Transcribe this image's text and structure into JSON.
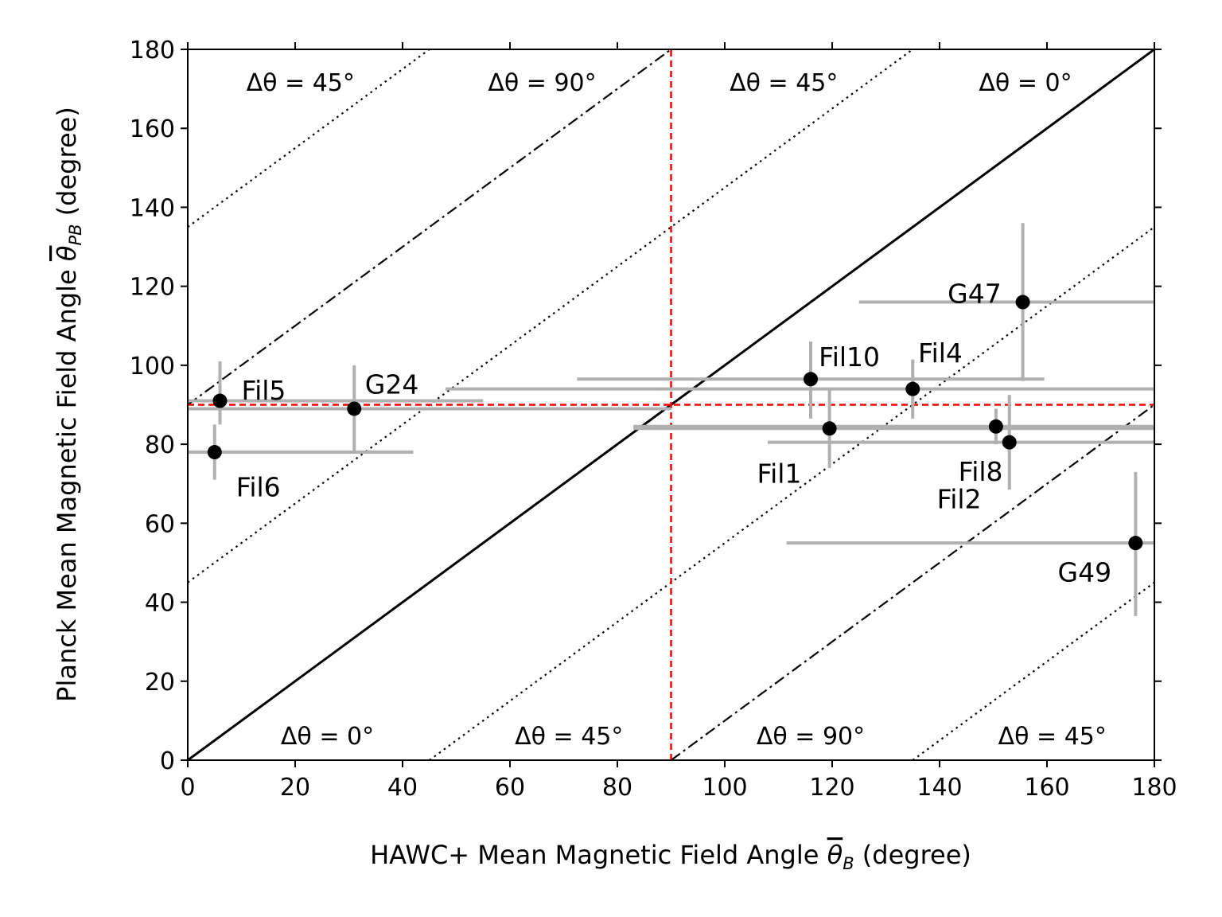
{
  "chart_data": {
    "type": "scatter",
    "xlabel": "HAWC+ Mean Magnetic Field Angle θ̄B (degree)",
    "ylabel": "Planck Mean Magnetic Field Angle θ̄PB (degree)",
    "xlabel_parts": {
      "main": "HAWC+ Mean Magnetic Field Angle ",
      "symbol": "θ",
      "sub": "B",
      "unit": " (degree)"
    },
    "ylabel_parts": {
      "main": "Planck Mean Magnetic Field Angle ",
      "symbol": "θ",
      "sub": "PB",
      "unit": " (degree)"
    },
    "xlim": [
      0,
      180
    ],
    "ylim": [
      0,
      180
    ],
    "xticks": [
      0,
      20,
      40,
      60,
      80,
      100,
      120,
      140,
      160,
      180
    ],
    "yticks": [
      0,
      20,
      40,
      60,
      80,
      100,
      120,
      140,
      160,
      180
    ],
    "grid": false,
    "colors": {
      "points": "#000000",
      "errorbars": "#b0b0b0",
      "reference": "#ff0000"
    },
    "points": [
      {
        "name": "Fil5",
        "x": 6,
        "y": 91,
        "xerr": [
          6,
          49
        ],
        "yerr": [
          6,
          10
        ]
      },
      {
        "name": "Fil6",
        "x": 5,
        "y": 78,
        "xerr": [
          5,
          37
        ],
        "yerr": [
          7,
          7
        ]
      },
      {
        "name": "G24",
        "x": 31,
        "y": 89,
        "xerr": [
          31,
          59
        ],
        "yerr": [
          11,
          11
        ]
      },
      {
        "name": "Fil10",
        "x": 116,
        "y": 96.5,
        "xerr": [
          43.5,
          43.5
        ],
        "yerr": [
          10,
          9.5
        ]
      },
      {
        "name": "Fil1",
        "x": 119.5,
        "y": 84,
        "xerr": [
          36.5,
          60.5
        ],
        "yerr": [
          10,
          10
        ]
      },
      {
        "name": "Fil4",
        "x": 135,
        "y": 94,
        "xerr": [
          87,
          45
        ],
        "yerr": [
          7.5,
          7.5
        ]
      },
      {
        "name": "Fil8",
        "x": 150.5,
        "y": 84.5,
        "xerr": [
          67.5,
          29.5
        ],
        "yerr": [
          4.5,
          4.5
        ]
      },
      {
        "name": "Fil2",
        "x": 153,
        "y": 80.5,
        "xerr": [
          45,
          27
        ],
        "yerr": [
          12,
          12
        ]
      },
      {
        "name": "G47",
        "x": 155.5,
        "y": 116,
        "xerr": [
          30.5,
          24.5
        ],
        "yerr": [
          20,
          20
        ]
      },
      {
        "name": "G49",
        "x": 176.5,
        "y": 55,
        "xerr": [
          65,
          3.5
        ],
        "yerr": [
          18.5,
          18
        ]
      }
    ],
    "reference_lines": [
      {
        "style": "solid",
        "x0": 0,
        "y0": 0,
        "x1": 180,
        "y1": 180
      },
      {
        "style": "dotted",
        "x0": 0,
        "y0": 45,
        "x1": 135,
        "y1": 180
      },
      {
        "style": "dotted",
        "x0": 45,
        "y0": 0,
        "x1": 180,
        "y1": 135
      },
      {
        "style": "dotted",
        "x0": 0,
        "y0": 135,
        "x1": 45,
        "y1": 180
      },
      {
        "style": "dotted",
        "x0": 135,
        "y0": 0,
        "x1": 180,
        "y1": 45
      },
      {
        "style": "dashdot",
        "x0": 0,
        "y0": 90,
        "x1": 90,
        "y1": 180
      },
      {
        "style": "dashdot",
        "x0": 90,
        "y0": 0,
        "x1": 180,
        "y1": 90
      },
      {
        "style": "reddash",
        "x0": 90,
        "y0": 0,
        "x1": 90,
        "y1": 180
      },
      {
        "style": "reddash",
        "x0": 0,
        "y0": 90,
        "x1": 180,
        "y1": 90
      }
    ],
    "annotations": [
      {
        "text": "Δθ = 45°",
        "x": 21,
        "y": 171.5
      },
      {
        "text": "Δθ = 90°",
        "x": 66,
        "y": 171.5
      },
      {
        "text": "Δθ = 45°",
        "x": 111,
        "y": 171.5
      },
      {
        "text": "Δθ = 0°",
        "x": 156,
        "y": 171.5
      },
      {
        "text": "Δθ = 0°",
        "x": 26,
        "y": 6
      },
      {
        "text": "Δθ = 45°",
        "x": 71,
        "y": 6
      },
      {
        "text": "Δθ = 90°",
        "x": 116,
        "y": 6
      },
      {
        "text": "Δθ = 45°",
        "x": 161,
        "y": 6
      }
    ],
    "point_labels": [
      {
        "text": "Fil5",
        "x": 10,
        "y": 93.5
      },
      {
        "text": "Fil6",
        "x": 9,
        "y": 69
      },
      {
        "text": "G24",
        "x": 33,
        "y": 95
      },
      {
        "text": "Fil10",
        "x": 117.5,
        "y": 102
      },
      {
        "text": "Fil1",
        "x": 106,
        "y": 72.5
      },
      {
        "text": "Fil4",
        "x": 136,
        "y": 103
      },
      {
        "text": "Fil8",
        "x": 143.5,
        "y": 73
      },
      {
        "text": "Fil2",
        "x": 139.5,
        "y": 66
      },
      {
        "text": "G47",
        "x": 141.5,
        "y": 118
      },
      {
        "text": "G49",
        "x": 162,
        "y": 47.5
      }
    ]
  }
}
